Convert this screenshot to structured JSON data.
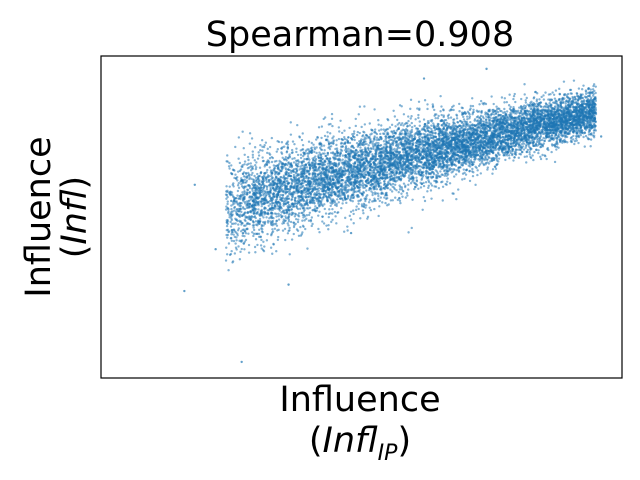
{
  "chart_data": {
    "type": "scatter",
    "title": "Spearman=0.908",
    "xlabel_line1": "Influence",
    "xlabel_line2_prefix": "(",
    "xlabel_line2_var": "Infl",
    "xlabel_line2_sub": "IP",
    "xlabel_line2_suffix": ")",
    "ylabel_line1": "Influence",
    "ylabel_line2_prefix": "(",
    "ylabel_line2_var": "Infl",
    "ylabel_line2_suffix": ")",
    "xticks": [],
    "yticks": [],
    "grid": false,
    "legend": "none",
    "xlim": [
      0,
      1
    ],
    "ylim": [
      0,
      1
    ],
    "point_color": "#1f77b4",
    "series": [
      {
        "points": [
          [
            0.25,
            0.55
          ],
          [
            0.28,
            0.57
          ],
          [
            0.3,
            0.56
          ],
          [
            0.33,
            0.59
          ],
          [
            0.35,
            0.58
          ],
          [
            0.38,
            0.61
          ],
          [
            0.4,
            0.6
          ],
          [
            0.43,
            0.63
          ],
          [
            0.45,
            0.64
          ],
          [
            0.48,
            0.66
          ],
          [
            0.5,
            0.66
          ],
          [
            0.53,
            0.68
          ],
          [
            0.55,
            0.69
          ],
          [
            0.58,
            0.71
          ],
          [
            0.6,
            0.71
          ],
          [
            0.63,
            0.72
          ],
          [
            0.65,
            0.73
          ],
          [
            0.68,
            0.74
          ],
          [
            0.7,
            0.74
          ],
          [
            0.73,
            0.75
          ],
          [
            0.75,
            0.76
          ],
          [
            0.78,
            0.77
          ],
          [
            0.8,
            0.78
          ],
          [
            0.83,
            0.79
          ],
          [
            0.86,
            0.8
          ],
          [
            0.89,
            0.81
          ],
          [
            0.92,
            0.82
          ],
          [
            0.94,
            0.83
          ],
          [
            0.18,
            0.6
          ],
          [
            0.22,
            0.4
          ],
          [
            0.27,
            0.05
          ],
          [
            0.16,
            0.27
          ],
          [
            0.74,
            0.96
          ],
          [
            0.62,
            0.93
          ],
          [
            0.48,
            0.45
          ],
          [
            0.36,
            0.29
          ],
          [
            0.58,
            0.58
          ],
          [
            0.96,
            0.75
          ]
        ]
      }
    ]
  }
}
